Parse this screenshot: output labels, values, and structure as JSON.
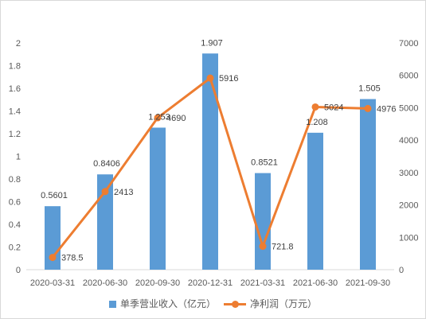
{
  "chart_data": {
    "type": "bar",
    "title": "",
    "xlabel": "",
    "ylabel": "",
    "categories": [
      "2020-03-31",
      "2020-06-30",
      "2020-09-30",
      "2020-12-31",
      "2021-03-31",
      "2021-06-30",
      "2021-09-30"
    ],
    "series": [
      {
        "name": "单季营业收入（亿元）",
        "type": "bar",
        "axis": "left",
        "color": "#5B9BD5",
        "values": [
          0.5601,
          0.8406,
          1.253,
          1.907,
          0.8521,
          1.208,
          1.505
        ]
      },
      {
        "name": "净利润（万元）",
        "type": "line",
        "axis": "right",
        "color": "#ED7D31",
        "values": [
          378.5,
          2413,
          4690,
          5916,
          721.8,
          5024,
          4976
        ]
      }
    ],
    "y_left": {
      "lim": [
        0,
        2
      ],
      "ticks": [
        0,
        0.2,
        0.4,
        0.6,
        0.8,
        1,
        1.2,
        1.4,
        1.6,
        1.8,
        2
      ]
    },
    "y_right": {
      "lim": [
        0,
        7000
      ],
      "ticks": [
        0,
        1000,
        2000,
        3000,
        4000,
        5000,
        6000,
        7000
      ]
    },
    "data_labels": true,
    "grid": false,
    "legend": "bottom"
  }
}
